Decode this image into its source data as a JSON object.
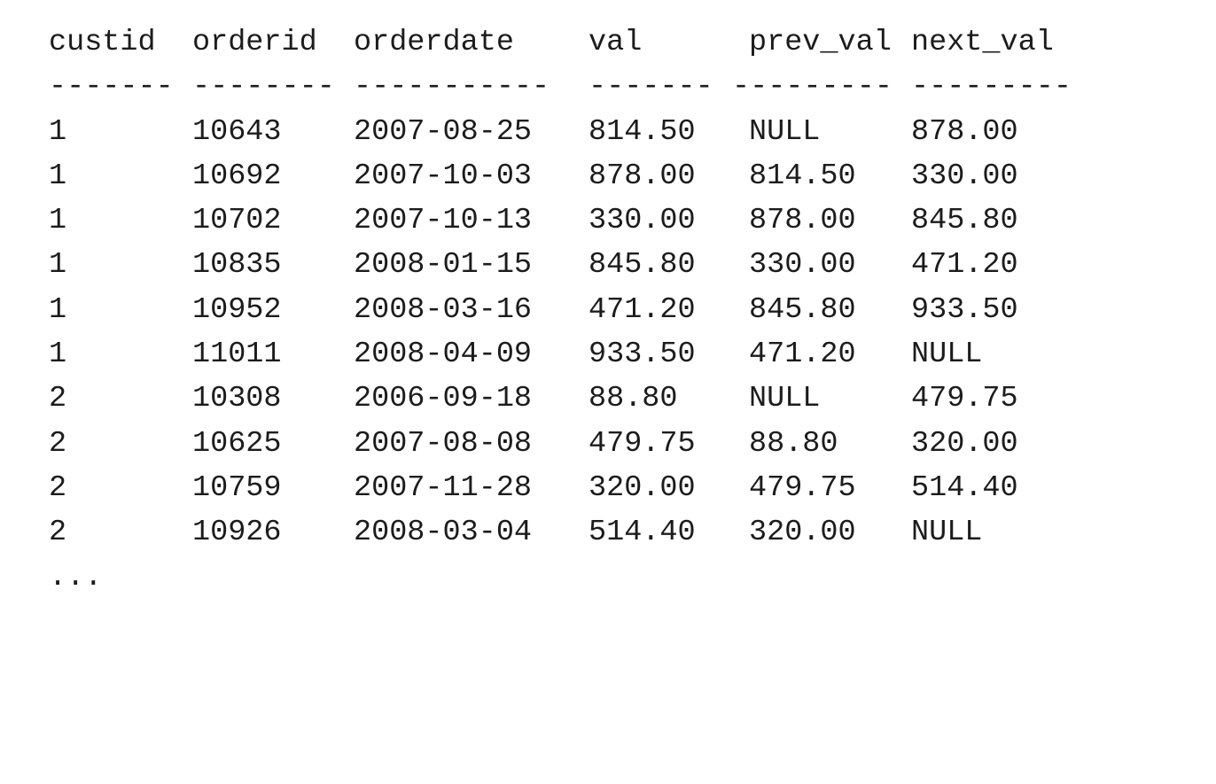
{
  "columns": [
    "custid",
    "orderid",
    "orderdate",
    "val",
    "prev_val",
    "next_val"
  ],
  "separators": [
    "-------",
    "--------",
    "-----------",
    "-------",
    "---------",
    "---------"
  ],
  "rows": [
    [
      "1",
      "10643",
      "2007-08-25",
      "814.50",
      "NULL",
      "878.00"
    ],
    [
      "1",
      "10692",
      "2007-10-03",
      "878.00",
      "814.50",
      "330.00"
    ],
    [
      "1",
      "10702",
      "2007-10-13",
      "330.00",
      "878.00",
      "845.80"
    ],
    [
      "1",
      "10835",
      "2008-01-15",
      "845.80",
      "330.00",
      "471.20"
    ],
    [
      "1",
      "10952",
      "2008-03-16",
      "471.20",
      "845.80",
      "933.50"
    ],
    [
      "1",
      "11011",
      "2008-04-09",
      "933.50",
      "471.20",
      "NULL"
    ],
    [
      "2",
      "10308",
      "2006-09-18",
      "88.80",
      "NULL",
      "479.75"
    ],
    [
      "2",
      "10625",
      "2007-08-08",
      "479.75",
      "88.80",
      "320.00"
    ],
    [
      "2",
      "10759",
      "2007-11-28",
      "320.00",
      "479.75",
      "514.40"
    ],
    [
      "2",
      "10926",
      "2008-03-04",
      "514.40",
      "320.00",
      "NULL"
    ]
  ],
  "ellipsis": "...",
  "colors": {
    "text": "#1c1c1c",
    "background": "#ffffff"
  }
}
